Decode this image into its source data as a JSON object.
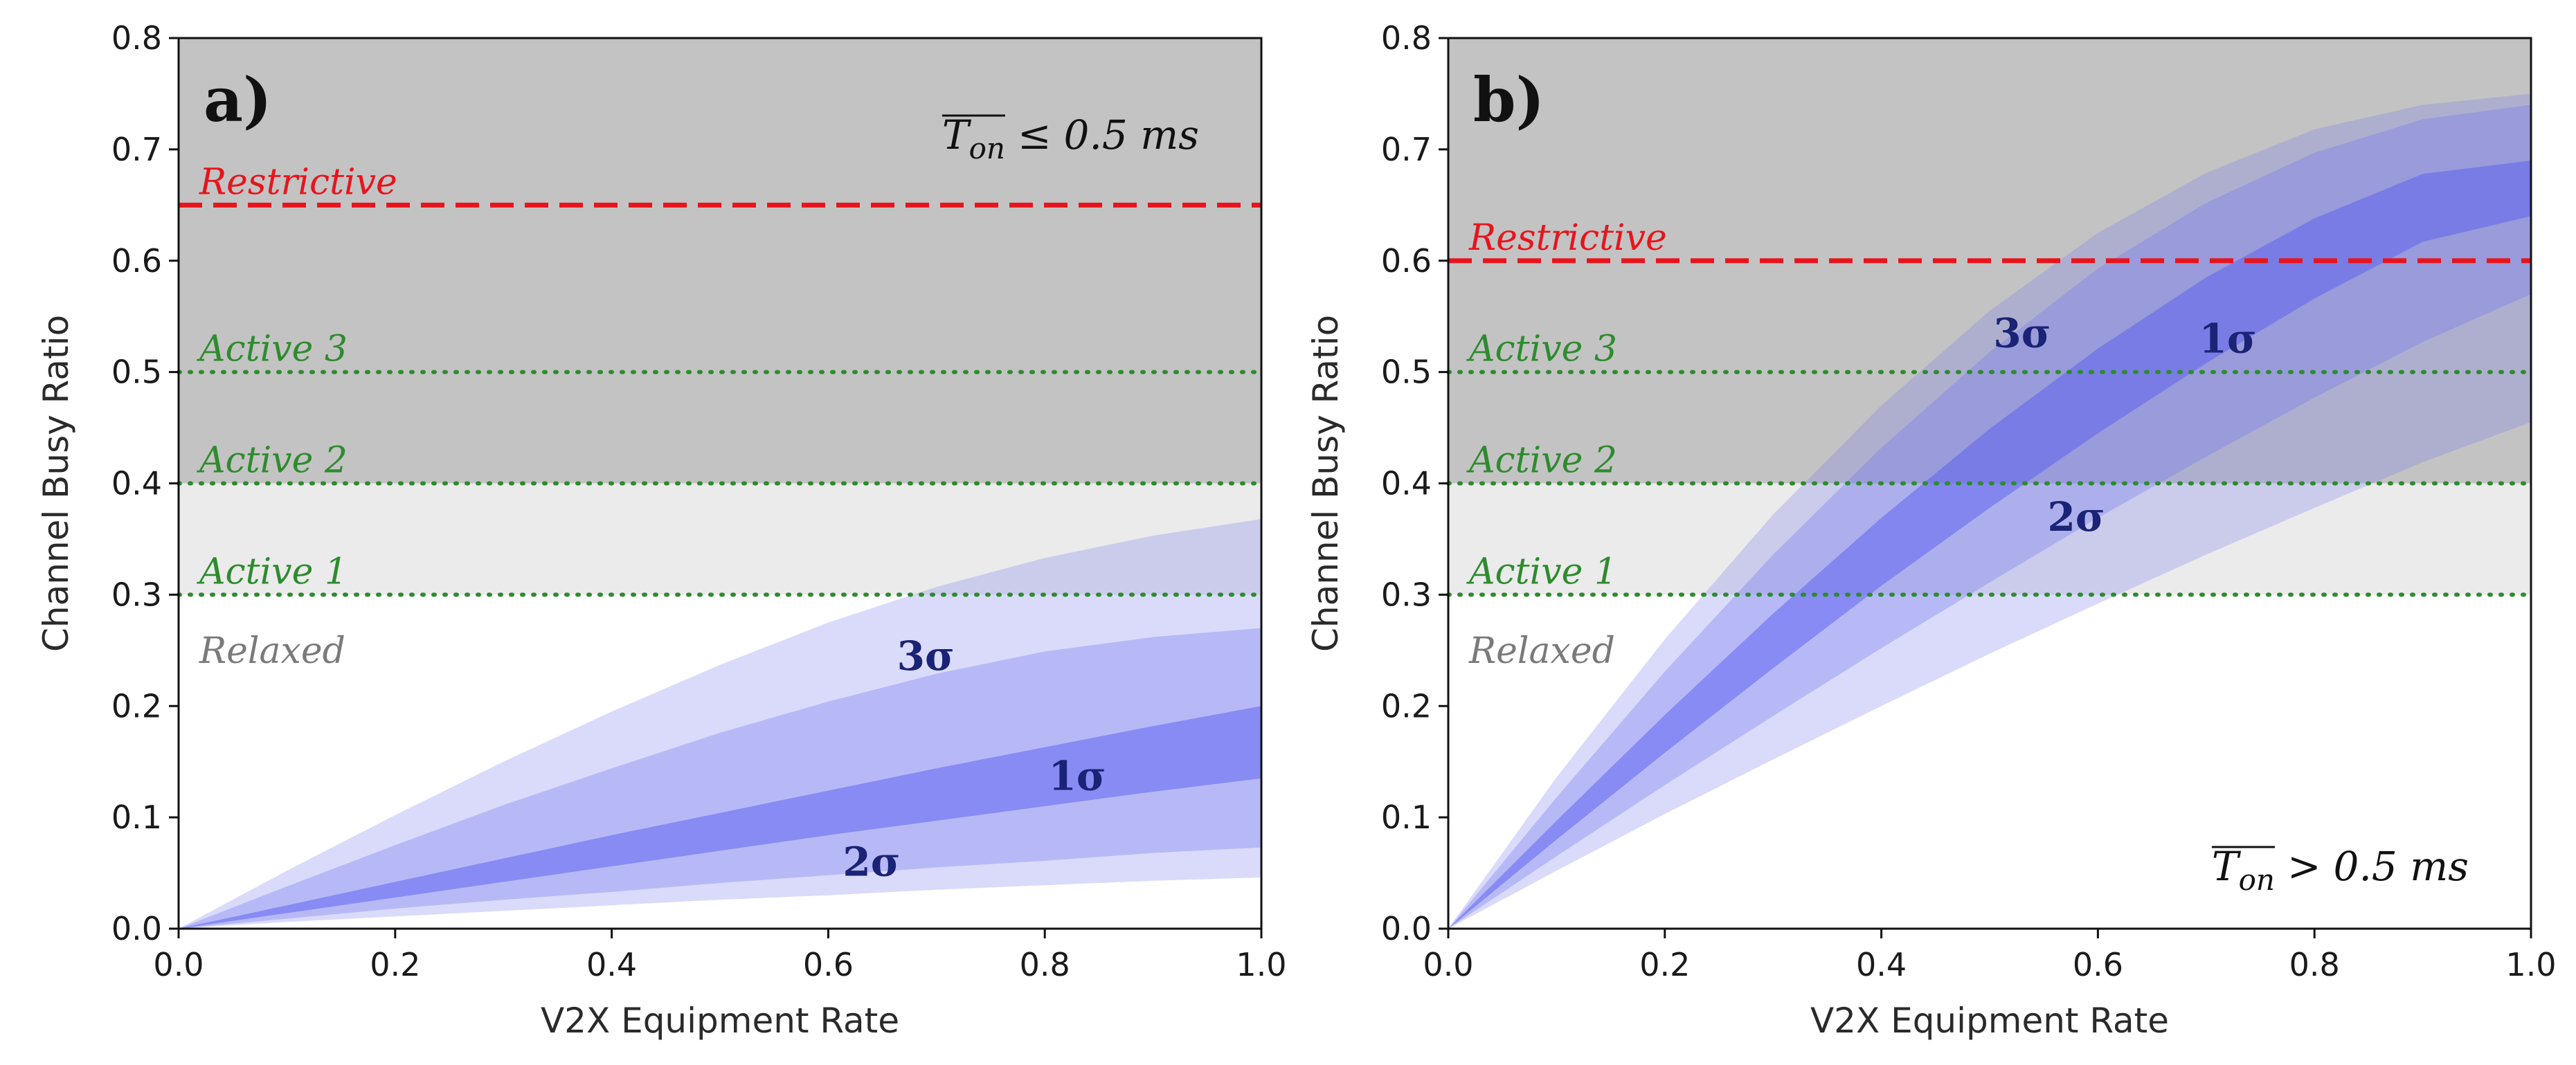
{
  "chart_data": [
    {
      "type": "area",
      "panel_label": "a)",
      "condition": {
        "var": "T",
        "sub": "on",
        "op": "≤",
        "rest": "0.5 ms"
      },
      "condition_position": "top-right",
      "xlabel": "V2X Equipment Rate",
      "ylabel": "Channel Busy Ratio",
      "xlim": [
        0.0,
        1.0
      ],
      "ylim": [
        0.0,
        0.8
      ],
      "xticks": [
        "0.0",
        "0.2",
        "0.4",
        "0.6",
        "0.8",
        "1.0"
      ],
      "yticks": [
        "0.0",
        "0.1",
        "0.2",
        "0.3",
        "0.4",
        "0.5",
        "0.6",
        "0.7",
        "0.8"
      ],
      "grid": false,
      "regions": [
        {
          "name": "Relaxed",
          "from": 0.0,
          "to": 0.3,
          "color": "#ffffff"
        },
        {
          "name": "Active",
          "from": 0.3,
          "to": 0.4,
          "color": "#ebebeb"
        },
        {
          "name": "Restrictive",
          "from": 0.4,
          "to": 0.8,
          "color": "#c3c3c3"
        }
      ],
      "thresholds": [
        {
          "label": "Restrictive",
          "y": 0.65,
          "style": "dashed",
          "color": "#e8141c"
        },
        {
          "label": "Active 3",
          "y": 0.5,
          "style": "dotted",
          "color": "#2e8b2e"
        },
        {
          "label": "Active 2",
          "y": 0.4,
          "style": "dotted",
          "color": "#2e8b2e"
        },
        {
          "label": "Active 1",
          "y": 0.3,
          "style": "dotted",
          "color": "#2e8b2e"
        }
      ],
      "relaxed_label": "Relaxed",
      "relaxed_label_y": 0.25,
      "x": [
        0.0,
        0.1,
        0.2,
        0.3,
        0.4,
        0.5,
        0.6,
        0.7,
        0.8,
        0.9,
        1.0
      ],
      "bands": [
        {
          "name": "3σ",
          "color": "#7b7ef0",
          "opacity": 0.28,
          "lower": [
            0,
            0.006,
            0.011,
            0.016,
            0.021,
            0.026,
            0.03,
            0.035,
            0.039,
            0.043,
            0.046
          ],
          "upper": [
            0,
            0.052,
            0.102,
            0.15,
            0.195,
            0.237,
            0.275,
            0.307,
            0.333,
            0.353,
            0.368
          ]
        },
        {
          "name": "2σ",
          "color": "#6f73f0",
          "opacity": 0.33,
          "lower": [
            0,
            0.009,
            0.018,
            0.026,
            0.033,
            0.041,
            0.048,
            0.055,
            0.061,
            0.068,
            0.073
          ],
          "upper": [
            0,
            0.038,
            0.075,
            0.111,
            0.144,
            0.176,
            0.204,
            0.229,
            0.249,
            0.262,
            0.27
          ]
        },
        {
          "name": "1σ",
          "color": "#5a5ef0",
          "opacity": 0.5,
          "lower": [
            0,
            0.014,
            0.028,
            0.042,
            0.056,
            0.07,
            0.084,
            0.097,
            0.11,
            0.123,
            0.135
          ],
          "upper": [
            0,
            0.021,
            0.042,
            0.063,
            0.084,
            0.104,
            0.124,
            0.144,
            0.163,
            0.182,
            0.2
          ]
        }
      ],
      "band_labels": [
        {
          "text": "3σ",
          "x": 0.69,
          "y": 0.245
        },
        {
          "text": "1σ",
          "x": 0.83,
          "y": 0.137
        },
        {
          "text": "2σ",
          "x": 0.64,
          "y": 0.06
        }
      ]
    },
    {
      "type": "area",
      "panel_label": "b)",
      "condition": {
        "var": "T",
        "sub": "on",
        "op": ">",
        "rest": "0.5 ms"
      },
      "condition_position": "bottom-right",
      "xlabel": "V2X Equipment Rate",
      "ylabel": "Channel Busy Ratio",
      "xlim": [
        0.0,
        1.0
      ],
      "ylim": [
        0.0,
        0.8
      ],
      "xticks": [
        "0.0",
        "0.2",
        "0.4",
        "0.6",
        "0.8",
        "1.0"
      ],
      "yticks": [
        "0.0",
        "0.1",
        "0.2",
        "0.3",
        "0.4",
        "0.5",
        "0.6",
        "0.7",
        "0.8"
      ],
      "grid": false,
      "regions": [
        {
          "name": "Relaxed",
          "from": 0.0,
          "to": 0.3,
          "color": "#ffffff"
        },
        {
          "name": "Active",
          "from": 0.3,
          "to": 0.4,
          "color": "#ebebeb"
        },
        {
          "name": "Restrictive",
          "from": 0.4,
          "to": 0.8,
          "color": "#c3c3c3"
        }
      ],
      "thresholds": [
        {
          "label": "Restrictive",
          "y": 0.6,
          "style": "dashed",
          "color": "#e8141c"
        },
        {
          "label": "Active 3",
          "y": 0.5,
          "style": "dotted",
          "color": "#2e8b2e"
        },
        {
          "label": "Active 2",
          "y": 0.4,
          "style": "dotted",
          "color": "#2e8b2e"
        },
        {
          "label": "Active 1",
          "y": 0.3,
          "style": "dotted",
          "color": "#2e8b2e"
        }
      ],
      "relaxed_label": "Relaxed",
      "relaxed_label_y": 0.25,
      "x": [
        0.0,
        0.1,
        0.2,
        0.3,
        0.4,
        0.5,
        0.6,
        0.7,
        0.8,
        0.9,
        1.0
      ],
      "bands": [
        {
          "name": "3σ",
          "color": "#7b7ef0",
          "opacity": 0.28,
          "lower": [
            0,
            0.052,
            0.103,
            0.152,
            0.2,
            0.247,
            0.292,
            0.336,
            0.378,
            0.419,
            0.455
          ],
          "upper": [
            0,
            0.136,
            0.26,
            0.372,
            0.47,
            0.555,
            0.625,
            0.679,
            0.718,
            0.74,
            0.75
          ]
        },
        {
          "name": "2σ",
          "color": "#6f73f0",
          "opacity": 0.33,
          "lower": [
            0,
            0.065,
            0.129,
            0.191,
            0.252,
            0.311,
            0.369,
            0.424,
            0.477,
            0.527,
            0.57
          ],
          "upper": [
            0,
            0.118,
            0.231,
            0.336,
            0.432,
            0.518,
            0.593,
            0.652,
            0.697,
            0.727,
            0.74
          ]
        },
        {
          "name": "1σ",
          "color": "#5a5ef0",
          "opacity": 0.5,
          "lower": [
            0,
            0.08,
            0.158,
            0.234,
            0.308,
            0.378,
            0.445,
            0.508,
            0.566,
            0.617,
            0.64
          ],
          "upper": [
            0,
            0.097,
            0.192,
            0.283,
            0.369,
            0.449,
            0.521,
            0.585,
            0.638,
            0.678,
            0.69
          ]
        }
      ],
      "band_labels": [
        {
          "text": "3σ",
          "x": 0.53,
          "y": 0.535
        },
        {
          "text": "1σ",
          "x": 0.72,
          "y": 0.53
        },
        {
          "text": "2σ",
          "x": 0.58,
          "y": 0.37
        }
      ]
    }
  ]
}
